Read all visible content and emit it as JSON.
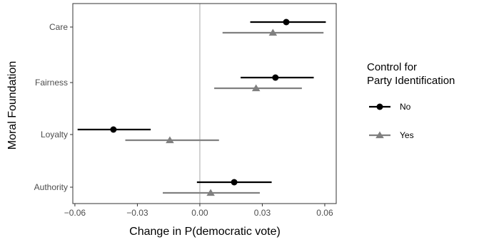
{
  "chart_data": {
    "type": "dot-whisker",
    "xlabel": "Change in P(democratic vote)",
    "ylabel": "Moral Foundation",
    "xlim": [
      -0.061,
      0.0655
    ],
    "xticks": [
      -0.06,
      -0.03,
      0.0,
      0.03,
      0.06
    ],
    "xtick_labels": [
      "−0.06",
      "−0.03",
      "0.00",
      "0.03",
      "0.06"
    ],
    "categories": [
      "Care",
      "Fairness",
      "Loyalty",
      "Authority"
    ],
    "reference_line": 0,
    "grid": false,
    "legend": {
      "title_lines": [
        "Control for",
        "Party Identification"
      ],
      "position": "right"
    },
    "series": [
      {
        "name": "No",
        "color": "#000000",
        "marker": "circle",
        "values": [
          {
            "category": "Care",
            "estimate": 0.0415,
            "low": 0.0242,
            "high": 0.0605
          },
          {
            "category": "Fairness",
            "estimate": 0.0363,
            "low": 0.0196,
            "high": 0.0547
          },
          {
            "category": "Loyalty",
            "estimate": -0.0415,
            "low": -0.0587,
            "high": -0.0236
          },
          {
            "category": "Authority",
            "estimate": 0.0165,
            "low": -0.0014,
            "high": 0.0345
          }
        ]
      },
      {
        "name": "Yes",
        "color": "#808080",
        "marker": "triangle",
        "values": [
          {
            "category": "Care",
            "estimate": 0.0351,
            "low": 0.0109,
            "high": 0.0594
          },
          {
            "category": "Fairness",
            "estimate": 0.027,
            "low": 0.0069,
            "high": 0.049
          },
          {
            "category": "Loyalty",
            "estimate": -0.0144,
            "low": -0.0358,
            "high": 0.0092
          },
          {
            "category": "Authority",
            "estimate": 0.0052,
            "low": -0.0178,
            "high": 0.0288
          }
        ]
      }
    ]
  }
}
